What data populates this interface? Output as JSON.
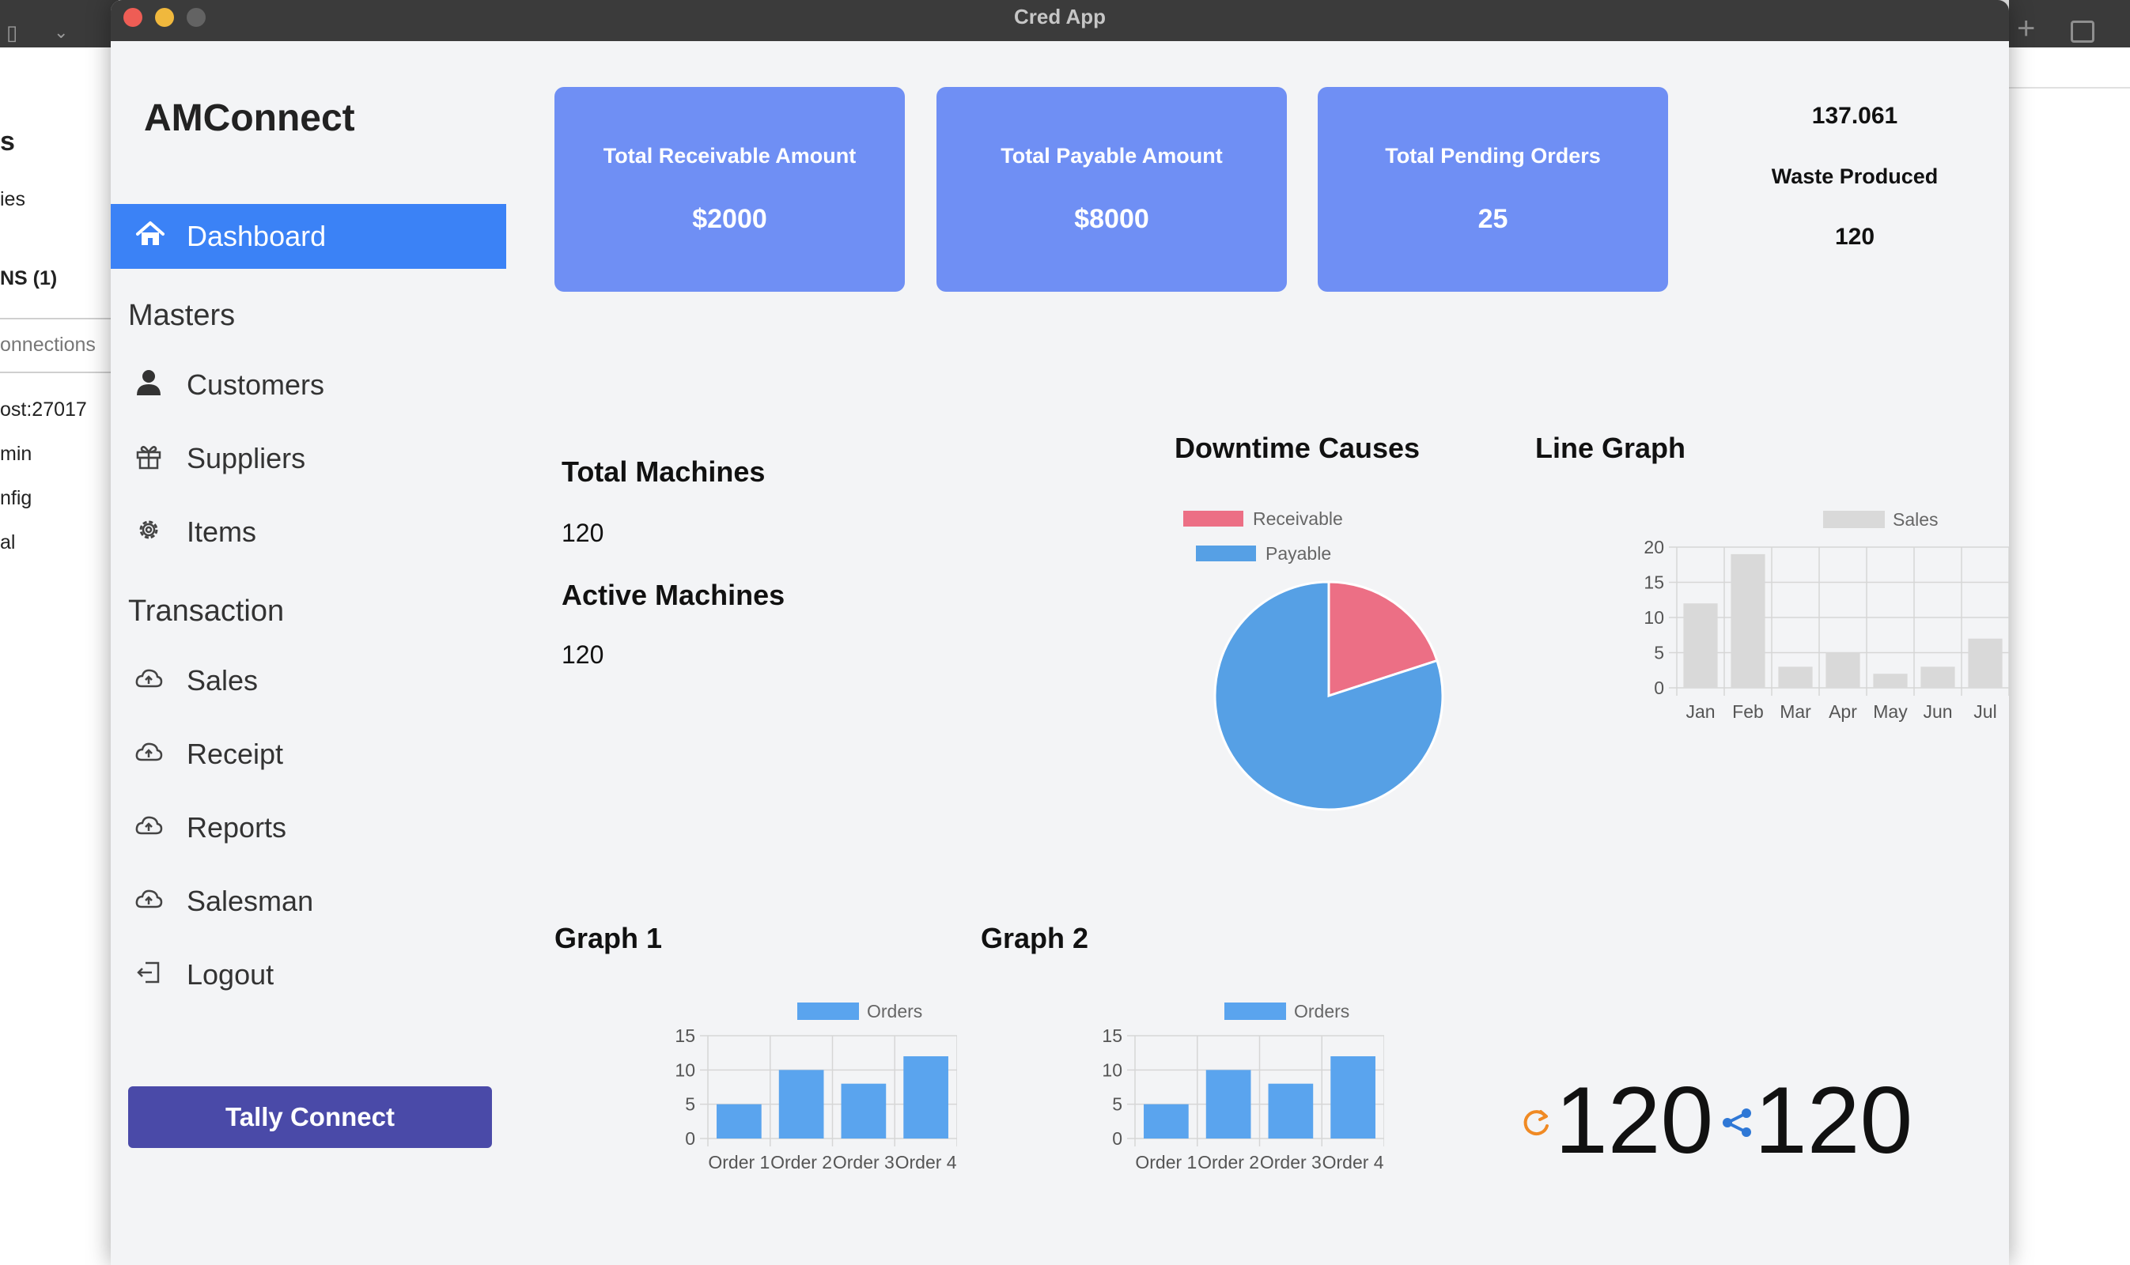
{
  "window": {
    "title": "Cred App"
  },
  "background_left": {
    "lines": [
      "s",
      "ies",
      "NS (1)",
      "onnections",
      "ost:27017",
      "min",
      "nfig",
      "al"
    ]
  },
  "sidebar": {
    "brand": "AMConnect",
    "dashboard_label": "Dashboard",
    "masters_title": "Masters",
    "masters": [
      {
        "label": "Customers",
        "icon": "user-icon"
      },
      {
        "label": "Suppliers",
        "icon": "gift-icon"
      },
      {
        "label": "Items",
        "icon": "gear-icon"
      }
    ],
    "transaction_title": "Transaction",
    "transactions": [
      {
        "label": "Sales",
        "icon": "cloud-upload-icon"
      },
      {
        "label": "Receipt",
        "icon": "cloud-upload-icon"
      },
      {
        "label": "Reports",
        "icon": "cloud-upload-icon"
      },
      {
        "label": "Salesman",
        "icon": "cloud-upload-icon"
      }
    ],
    "logout_label": "Logout",
    "tally_button": "Tally Connect"
  },
  "cards": [
    {
      "title": "Total Receivable Amount",
      "value": "$2000"
    },
    {
      "title": "Total Payable Amount",
      "value": "$8000"
    },
    {
      "title": "Total Pending Orders",
      "value": "25"
    }
  ],
  "waste": {
    "top": "137.061",
    "label": "Waste Produced",
    "value": "120"
  },
  "machines": {
    "total_label": "Total Machines",
    "total_value": "120",
    "active_label": "Active Machines",
    "active_value": "120"
  },
  "colors": {
    "accent": "#3b82f6",
    "card": "#6f8ff4",
    "tally": "#4a4aa8",
    "pie_receivable": "#ec6f85",
    "pie_payable": "#56a0e5",
    "bar_orders": "#5aa4ee",
    "bar_sales": "#d9d9d9"
  },
  "bottom_stats": {
    "left_value": "120",
    "right_value": "120",
    "left_icon": "refresh-icon",
    "right_icon": "share-icon"
  },
  "chart_data": [
    {
      "id": "downtime",
      "type": "pie",
      "title": "Downtime Causes",
      "labels": [
        "Receivable",
        "Payable"
      ],
      "values": [
        2000,
        8000
      ],
      "legend": "top"
    },
    {
      "id": "line",
      "type": "bar",
      "title": "Line Graph",
      "categories": [
        "Jan",
        "Feb",
        "Mar",
        "Apr",
        "May",
        "Jun",
        "Jul"
      ],
      "series": [
        {
          "name": "Sales",
          "values": [
            12,
            19,
            3,
            5,
            2,
            3,
            7
          ]
        }
      ],
      "yticks": [
        0,
        5,
        10,
        15,
        20
      ],
      "ylim": [
        0,
        20
      ],
      "grid": true,
      "legend": "top"
    },
    {
      "id": "graph1",
      "type": "bar",
      "title": "Graph 1",
      "categories": [
        "Order 1",
        "Order 2",
        "Order 3",
        "Order 4"
      ],
      "series": [
        {
          "name": "Orders",
          "values": [
            5,
            10,
            8,
            12
          ]
        }
      ],
      "yticks": [
        0,
        5,
        10,
        15
      ],
      "ylim": [
        0,
        15
      ],
      "grid": true,
      "legend": "top"
    },
    {
      "id": "graph2",
      "type": "bar",
      "title": "Graph 2",
      "categories": [
        "Order 1",
        "Order 2",
        "Order 3",
        "Order 4"
      ],
      "series": [
        {
          "name": "Orders",
          "values": [
            5,
            10,
            8,
            12
          ]
        }
      ],
      "yticks": [
        0,
        5,
        10,
        15
      ],
      "ylim": [
        0,
        15
      ],
      "grid": true,
      "legend": "top"
    }
  ]
}
